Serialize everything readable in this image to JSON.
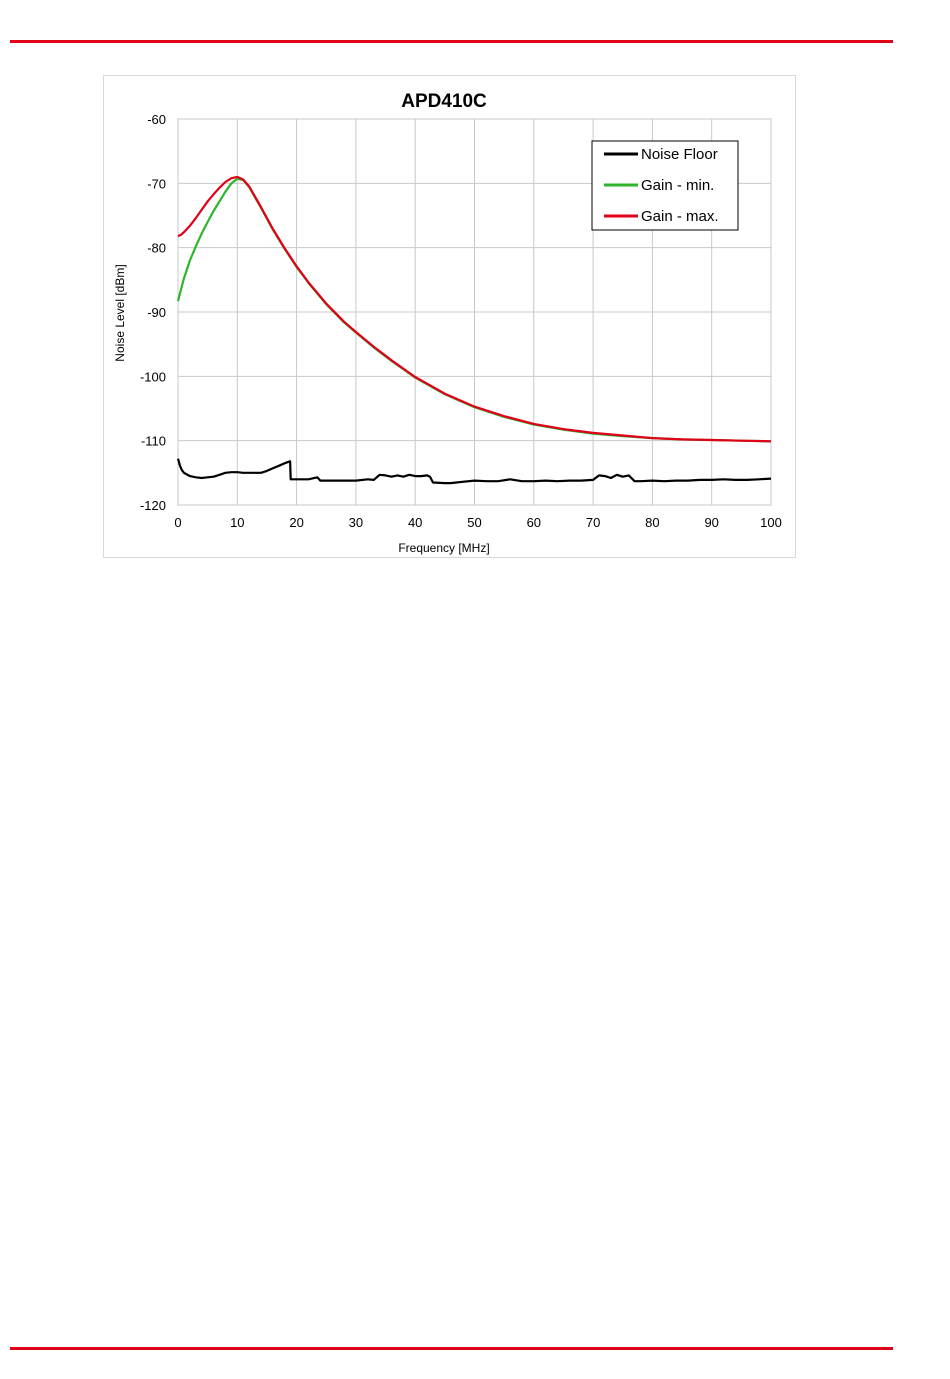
{
  "chart_data": {
    "type": "line",
    "title": "APD410C",
    "xlabel": "Frequency [MHz]",
    "ylabel": "Noise Level [dBm]",
    "xlim": [
      0,
      100
    ],
    "ylim": [
      -120,
      -60
    ],
    "xticks": [
      0,
      10,
      20,
      30,
      40,
      50,
      60,
      70,
      80,
      90,
      100
    ],
    "yticks": [
      -60,
      -70,
      -80,
      -90,
      -100,
      -110,
      -120
    ],
    "grid": true,
    "legend": "top-right",
    "series": [
      {
        "name": "Noise Floor",
        "color": "#000000",
        "x": [
          0,
          0.3,
          0.6,
          1,
          2,
          3,
          4,
          5,
          6,
          7,
          8,
          9,
          10,
          11,
          12,
          13,
          14,
          15,
          16,
          17,
          18,
          18.9,
          19,
          20,
          22,
          23.5,
          24,
          26,
          28,
          30,
          32,
          33,
          34,
          35,
          36,
          37,
          38,
          39,
          40,
          41,
          42,
          42.5,
          43,
          45,
          46,
          48,
          50,
          52,
          54,
          56,
          58,
          60,
          62,
          64,
          66,
          68,
          70,
          71,
          72,
          73,
          74,
          75,
          76,
          77,
          78,
          80,
          82,
          84,
          86,
          88,
          90,
          92,
          94,
          96,
          98,
          100
        ],
        "y": [
          -112.8,
          -113.8,
          -114.5,
          -115,
          -115.5,
          -115.7,
          -115.8,
          -115.7,
          -115.6,
          -115.3,
          -115.0,
          -114.9,
          -114.9,
          -115.0,
          -115.0,
          -115.0,
          -115.0,
          -114.7,
          -114.3,
          -113.9,
          -113.5,
          -113.2,
          -116.0,
          -116.0,
          -116.0,
          -115.7,
          -116.2,
          -116.2,
          -116.2,
          -116.2,
          -116.0,
          -116.1,
          -115.3,
          -115.4,
          -115.6,
          -115.4,
          -115.6,
          -115.3,
          -115.5,
          -115.5,
          -115.4,
          -115.6,
          -116.5,
          -116.6,
          -116.6,
          -116.4,
          -116.2,
          -116.3,
          -116.3,
          -116.0,
          -116.3,
          -116.3,
          -116.2,
          -116.3,
          -116.2,
          -116.2,
          -116.1,
          -115.4,
          -115.5,
          -115.8,
          -115.3,
          -115.6,
          -115.4,
          -116.3,
          -116.3,
          -116.2,
          -116.3,
          -116.2,
          -116.2,
          -116.1,
          -116.1,
          -116.0,
          -116.1,
          -116.1,
          -116.0,
          -115.9
        ]
      },
      {
        "name": "Gain - min.",
        "color": "#2db52d",
        "x": [
          0,
          0.5,
          1,
          2,
          3,
          4,
          5,
          6,
          7,
          8,
          9,
          10,
          11,
          12,
          14,
          16,
          18,
          20,
          22,
          25,
          28,
          30,
          33,
          36,
          40,
          45,
          50,
          55,
          60,
          65,
          70,
          75,
          80,
          85,
          90,
          95,
          100
        ],
        "y": [
          -88.3,
          -86.5,
          -84.8,
          -82.0,
          -79.8,
          -77.8,
          -76.0,
          -74.3,
          -72.8,
          -71.3,
          -70.0,
          -69.3,
          -69.5,
          -70.6,
          -73.8,
          -77.2,
          -80.2,
          -83.0,
          -85.5,
          -88.8,
          -91.6,
          -93.2,
          -95.5,
          -97.6,
          -100.2,
          -102.8,
          -104.8,
          -106.3,
          -107.5,
          -108.3,
          -108.9,
          -109.3,
          -109.6,
          -109.8,
          -109.9,
          -110.0,
          -110.1
        ]
      },
      {
        "name": "Gain - max.",
        "color": "#e0001a",
        "x": [
          0,
          0.5,
          1,
          2,
          3,
          4,
          5,
          6,
          7,
          8,
          9,
          10,
          11,
          12,
          14,
          16,
          18,
          20,
          22,
          25,
          28,
          30,
          33,
          36,
          40,
          45,
          50,
          55,
          60,
          65,
          70,
          75,
          80,
          85,
          90,
          95,
          100
        ],
        "y": [
          -78.2,
          -78.0,
          -77.6,
          -76.6,
          -75.4,
          -74.1,
          -72.8,
          -71.7,
          -70.7,
          -69.8,
          -69.2,
          -69.0,
          -69.4,
          -70.5,
          -73.7,
          -77.1,
          -80.1,
          -82.9,
          -85.4,
          -88.7,
          -91.5,
          -93.1,
          -95.4,
          -97.5,
          -100.1,
          -102.7,
          -104.7,
          -106.2,
          -107.4,
          -108.2,
          -108.8,
          -109.2,
          -109.6,
          -109.8,
          -109.9,
          -110.0,
          -110.1
        ]
      }
    ]
  }
}
